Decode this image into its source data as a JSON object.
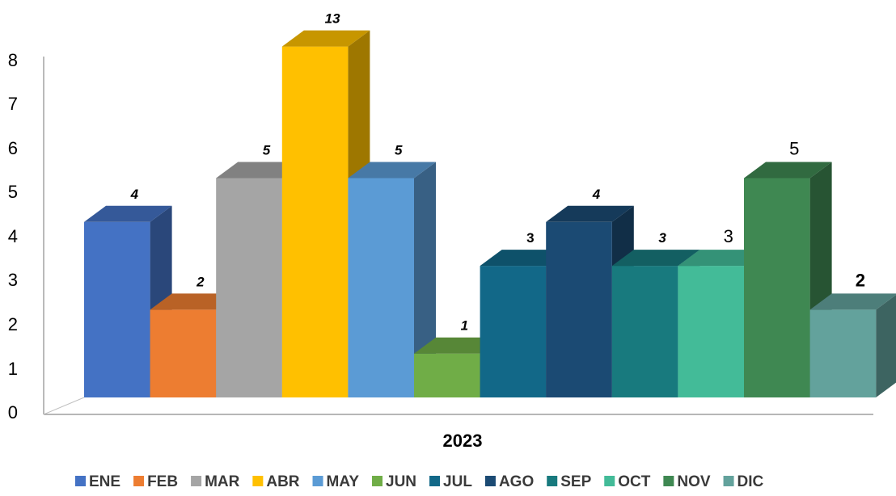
{
  "chart_data": {
    "type": "bar",
    "style": "3d-clustered-column",
    "category": "2023",
    "xlabel": "2023",
    "ylim": [
      0,
      8
    ],
    "yticks": [
      0,
      1,
      2,
      3,
      4,
      5,
      6,
      7,
      8
    ],
    "grid": false,
    "legend_position": "bottom",
    "series": [
      {
        "name": "ENE",
        "value": 4,
        "label": "4",
        "color": "#4472C4",
        "label_style": "bold-italic"
      },
      {
        "name": "FEB",
        "value": 2,
        "label": "2",
        "color": "#ED7D31",
        "label_style": "bold-italic"
      },
      {
        "name": "MAR",
        "value": 5,
        "label": "5",
        "color": "#A5A5A5",
        "label_style": "bold-italic"
      },
      {
        "name": "ABR",
        "value": 13,
        "label": "13",
        "color": "#FFC000",
        "label_style": "bold-italic",
        "display_value": 8
      },
      {
        "name": "MAY",
        "value": 5,
        "label": "5",
        "color": "#5B9BD5",
        "label_style": "bold-italic"
      },
      {
        "name": "JUN",
        "value": 1,
        "label": "1",
        "color": "#70AD47",
        "label_style": "bold-italic"
      },
      {
        "name": "JUL",
        "value": 3,
        "label": "3",
        "color": "#126888",
        "label_style": "bold"
      },
      {
        "name": "AGO",
        "value": 4,
        "label": "4",
        "color": "#1B4A73",
        "label_style": "bold-italic"
      },
      {
        "name": "SEP",
        "value": 3,
        "label": "3",
        "color": "#187A7E",
        "label_style": "bold-italic"
      },
      {
        "name": "OCT",
        "value": 3,
        "label": "3",
        "color": "#43BB98",
        "label_style": "regular"
      },
      {
        "name": "NOV",
        "value": 5,
        "label": "5",
        "color": "#3F8852",
        "label_style": "regular"
      },
      {
        "name": "DIC",
        "value": 2,
        "label": "2",
        "color": "#63A29C",
        "label_style": "bold"
      }
    ]
  }
}
